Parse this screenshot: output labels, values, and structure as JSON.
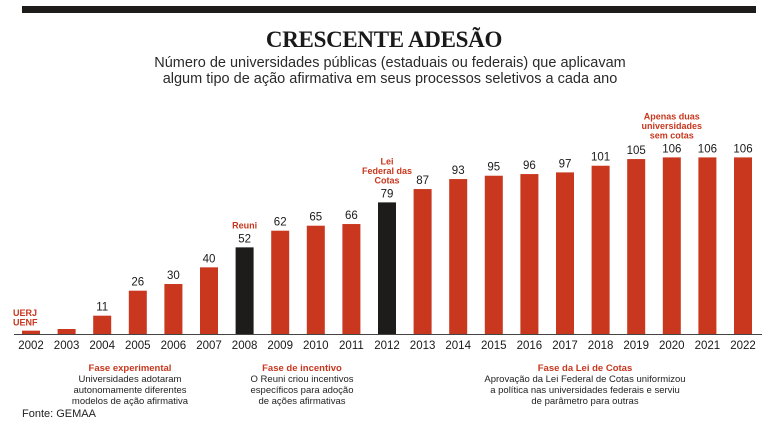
{
  "header": {
    "title": "CRESCENTE ADESÃO",
    "subtitle_line1": "Número de universidades públicas (estaduais ou federais) que aplicavam",
    "subtitle_line2": "algum tipo de ação afirmativa em seus processos seletivos a cada ano"
  },
  "colors": {
    "accent": "#c8371e",
    "highlight": "#1e1c1a",
    "text": "#1a1a1a"
  },
  "chart_data": {
    "type": "bar",
    "title": "CRESCENTE ADESÃO",
    "subtitle": "Número de universidades públicas (estaduais ou federais) que aplicavam algum tipo de ação afirmativa em seus processos seletivos a cada ano",
    "categories": [
      "2002",
      "2003",
      "2004",
      "2005",
      "2006",
      "2007",
      "2008",
      "2009",
      "2010",
      "2011",
      "2012",
      "2013",
      "2014",
      "2015",
      "2016",
      "2017",
      "2018",
      "2019",
      "2020",
      "2021",
      "2022"
    ],
    "values": [
      2,
      3,
      11,
      26,
      30,
      40,
      52,
      62,
      65,
      66,
      79,
      87,
      93,
      95,
      96,
      97,
      101,
      105,
      106,
      106,
      106
    ],
    "value_labels": [
      "",
      "",
      "11",
      "26",
      "30",
      "40",
      "52",
      "62",
      "65",
      "66",
      "79",
      "87",
      "93",
      "95",
      "96",
      "97",
      "101",
      "105",
      "106",
      "106",
      "106"
    ],
    "highlighted": [
      "2008",
      "2012"
    ],
    "ylim": [
      0,
      110
    ],
    "grid": false,
    "annotations": [
      {
        "year": "2002",
        "lines": [
          "UERJ",
          "UENF"
        ]
      },
      {
        "year": "2008",
        "lines": [
          "Reuni"
        ]
      },
      {
        "year": "2012",
        "lines": [
          "Lei",
          "Federal das",
          "Cotas"
        ]
      },
      {
        "year": "2020",
        "lines": [
          "Apenas duas",
          "universidades",
          "sem cotas"
        ]
      }
    ]
  },
  "phases": [
    {
      "title": "Fase experimental",
      "text": [
        "Universidades adotaram",
        "autonomamente diferentes",
        "modelos de ação afirmativa"
      ]
    },
    {
      "title": "Fase de incentivo",
      "text": [
        "O Reuni criou incentivos",
        "específicos para adoção",
        "de ações afirmativas"
      ]
    },
    {
      "title": "Fase da Lei de Cotas",
      "text": [
        "Aprovação da Lei Federal de Cotas uniformizou",
        "a política nas universidades federais e serviu",
        "de parâmetro para outras"
      ]
    }
  ],
  "footer": {
    "source": "Fonte: GEMAA"
  }
}
